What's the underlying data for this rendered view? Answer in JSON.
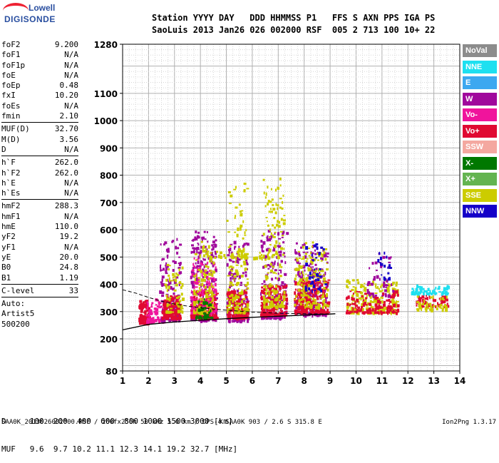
{
  "logo": {
    "line1": "Lowell",
    "line2": "DIGISONDE"
  },
  "header": {
    "labels": "Station YYYY DAY   DDD HHMMSS P1   FFS S AXN PPS IGA PS",
    "values": "SaoLuis 2013 Jan26 026 002000 RSF  005 2 713 100 10+ 22"
  },
  "params": [
    {
      "key": "foF2",
      "value": "9.200"
    },
    {
      "key": "foF1",
      "value": "N/A"
    },
    {
      "key": "foF1p",
      "value": "N/A"
    },
    {
      "key": "foE",
      "value": "N/A"
    },
    {
      "key": "foEp",
      "value": "0.48"
    },
    {
      "key": "fxI",
      "value": "10.20"
    },
    {
      "key": "foEs",
      "value": "N/A"
    },
    {
      "key": "fmin",
      "value": "2.10"
    },
    {
      "sep": true
    },
    {
      "key": "MUF(D)",
      "value": "32.70"
    },
    {
      "key": "M(D)",
      "value": "3.56"
    },
    {
      "key": "D",
      "value": "N/A"
    },
    {
      "sep": true
    },
    {
      "key": "h`F",
      "value": "262.0"
    },
    {
      "key": "h`F2",
      "value": "262.0"
    },
    {
      "key": "h`E",
      "value": "N/A"
    },
    {
      "key": "h`Es",
      "value": "N/A"
    },
    {
      "sep": true
    },
    {
      "key": "hmF2",
      "value": "288.3"
    },
    {
      "key": "hmF1",
      "value": "N/A"
    },
    {
      "key": "hmE",
      "value": "110.0"
    },
    {
      "key": "yF2",
      "value": "19.2"
    },
    {
      "key": "yF1",
      "value": "N/A"
    },
    {
      "key": "yE",
      "value": "20.0"
    },
    {
      "key": "B0",
      "value": "24.8"
    },
    {
      "key": "B1",
      "value": "1.19"
    },
    {
      "sep": true
    },
    {
      "key": "C-level",
      "value": "33"
    },
    {
      "sep": true
    },
    {
      "key": "Auto:",
      "value": ""
    },
    {
      "key": "Artist5",
      "value": ""
    },
    {
      "key": "500200",
      "value": ""
    }
  ],
  "legend": [
    {
      "label": "NoVal",
      "color": "#8c8c8c"
    },
    {
      "label": "NNE",
      "color": "#1ee0f0"
    },
    {
      "label": "E",
      "color": "#3ca8f0"
    },
    {
      "label": "W",
      "color": "#a0089c"
    },
    {
      "label": "Vo-",
      "color": "#f0149c"
    },
    {
      "label": "Vo+",
      "color": "#e00a32"
    },
    {
      "label": "SSW",
      "color": "#f4a8a0"
    },
    {
      "label": "X-",
      "color": "#007800"
    },
    {
      "label": "X+",
      "color": "#64b450"
    },
    {
      "label": "SSE",
      "color": "#cccc00"
    },
    {
      "label": "NNW",
      "color": "#1400c8"
    }
  ],
  "bottom": {
    "d_row": "D     100  200  400  600  800 1000 1500 3000 [km]",
    "muf_row": "MUF   9.6  9.7 10.2 11.1 12.3 14.1 19.2 32.7 [MHz]"
  },
  "footer": {
    "left": "SAA0K_2013026002000.RSF / 260fx256h 50 kHz 5.0 km / DPS-4 SAA0K 903 / 2.6 S 315.8 E",
    "right": "Ion2Png 1.3.17"
  },
  "chart_data": {
    "type": "scatter",
    "xlim": [
      1,
      14
    ],
    "ylim": [
      80,
      1280
    ],
    "xticks": [
      1,
      2,
      3,
      4,
      5,
      6,
      7,
      8,
      9,
      10,
      11,
      12,
      13,
      14
    ],
    "yticks": [
      80,
      200,
      300,
      400,
      500,
      600,
      700,
      800,
      900,
      1000,
      1100,
      1280
    ],
    "grid": true,
    "clusters": [
      {
        "x": [
          1.6,
          2.0
        ],
        "y": [
          262,
          345
        ],
        "color": "#e00a32",
        "n": 140
      },
      {
        "x": [
          1.9,
          2.6
        ],
        "y": [
          265,
          350
        ],
        "color": "#f0149c",
        "n": 90
      },
      {
        "x": [
          2.4,
          3.2
        ],
        "y": [
          270,
          580
        ],
        "color": "#a0089c",
        "n": 160
      },
      {
        "x": [
          2.5,
          3.2
        ],
        "y": [
          280,
          360
        ],
        "color": "#e00a32",
        "n": 160
      },
      {
        "x": [
          2.6,
          3.3
        ],
        "y": [
          300,
          480
        ],
        "color": "#cccc00",
        "n": 60
      },
      {
        "x": [
          3.6,
          4.6
        ],
        "y": [
          270,
          600
        ],
        "color": "#a0089c",
        "n": 240
      },
      {
        "x": [
          3.6,
          4.6
        ],
        "y": [
          280,
          380
        ],
        "color": "#e00a32",
        "n": 220
      },
      {
        "x": [
          3.6,
          4.6
        ],
        "y": [
          300,
          500
        ],
        "color": "#f0149c",
        "n": 120
      },
      {
        "x": [
          3.7,
          4.5
        ],
        "y": [
          300,
          560
        ],
        "color": "#cccc00",
        "n": 100
      },
      {
        "x": [
          3.8,
          4.4
        ],
        "y": [
          280,
          350
        ],
        "color": "#007800",
        "n": 40
      },
      {
        "x": [
          5.0,
          5.8
        ],
        "y": [
          270,
          560
        ],
        "color": "#a0089c",
        "n": 160
      },
      {
        "x": [
          5.0,
          5.8
        ],
        "y": [
          280,
          380
        ],
        "color": "#e00a32",
        "n": 160
      },
      {
        "x": [
          5.0,
          5.8
        ],
        "y": [
          300,
          780
        ],
        "color": "#cccc00",
        "n": 140
      },
      {
        "x": [
          6.3,
          7.3
        ],
        "y": [
          280,
          600
        ],
        "color": "#a0089c",
        "n": 180
      },
      {
        "x": [
          6.3,
          7.3
        ],
        "y": [
          290,
          400
        ],
        "color": "#e00a32",
        "n": 180
      },
      {
        "x": [
          6.4,
          7.2
        ],
        "y": [
          320,
          800
        ],
        "color": "#cccc00",
        "n": 150
      },
      {
        "x": [
          7.6,
          8.9
        ],
        "y": [
          290,
          560
        ],
        "color": "#a0089c",
        "n": 220
      },
      {
        "x": [
          7.6,
          8.9
        ],
        "y": [
          300,
          420
        ],
        "color": "#e00a32",
        "n": 240
      },
      {
        "x": [
          7.6,
          8.9
        ],
        "y": [
          320,
          560
        ],
        "color": "#cccc00",
        "n": 160
      },
      {
        "x": [
          8.0,
          8.8
        ],
        "y": [
          380,
          560
        ],
        "color": "#1400c8",
        "n": 40
      },
      {
        "x": [
          9.6,
          11.6
        ],
        "y": [
          300,
          420
        ],
        "color": "#cccc00",
        "n": 220
      },
      {
        "x": [
          9.6,
          11.6
        ],
        "y": [
          300,
          380
        ],
        "color": "#e00a32",
        "n": 140
      },
      {
        "x": [
          10.4,
          11.4
        ],
        "y": [
          360,
          520
        ],
        "color": "#a0089c",
        "n": 50
      },
      {
        "x": [
          10.8,
          11.3
        ],
        "y": [
          420,
          520
        ],
        "color": "#1400c8",
        "n": 18
      },
      {
        "x": [
          12.1,
          13.6
        ],
        "y": [
          370,
          400
        ],
        "color": "#1ee0f0",
        "n": 70
      },
      {
        "x": [
          12.3,
          13.5
        ],
        "y": [
          320,
          360
        ],
        "color": "#e00a32",
        "n": 60
      },
      {
        "x": [
          12.3,
          13.5
        ],
        "y": [
          310,
          360
        ],
        "color": "#cccc00",
        "n": 50
      },
      {
        "x": [
          4.0,
          7.0
        ],
        "y": [
          500,
          525
        ],
        "color": "#cccc00",
        "n": 60
      }
    ],
    "solid_curve": {
      "x": [
        1.0,
        2.0,
        3.0,
        4.0,
        5.0,
        6.0,
        7.0,
        8.0,
        9.0,
        9.2
      ],
      "y": [
        233,
        253,
        262,
        268,
        274,
        279,
        283,
        287,
        291,
        292
      ]
    },
    "dashed_curve": {
      "x": [
        1.0,
        1.5,
        2.0,
        2.5,
        3.0,
        3.5,
        4.0,
        5.0,
        6.0,
        7.0,
        8.0,
        9.0,
        9.2
      ],
      "y": [
        380,
        368,
        352,
        338,
        328,
        320,
        314,
        305,
        298,
        294,
        292,
        291,
        292
      ]
    }
  }
}
